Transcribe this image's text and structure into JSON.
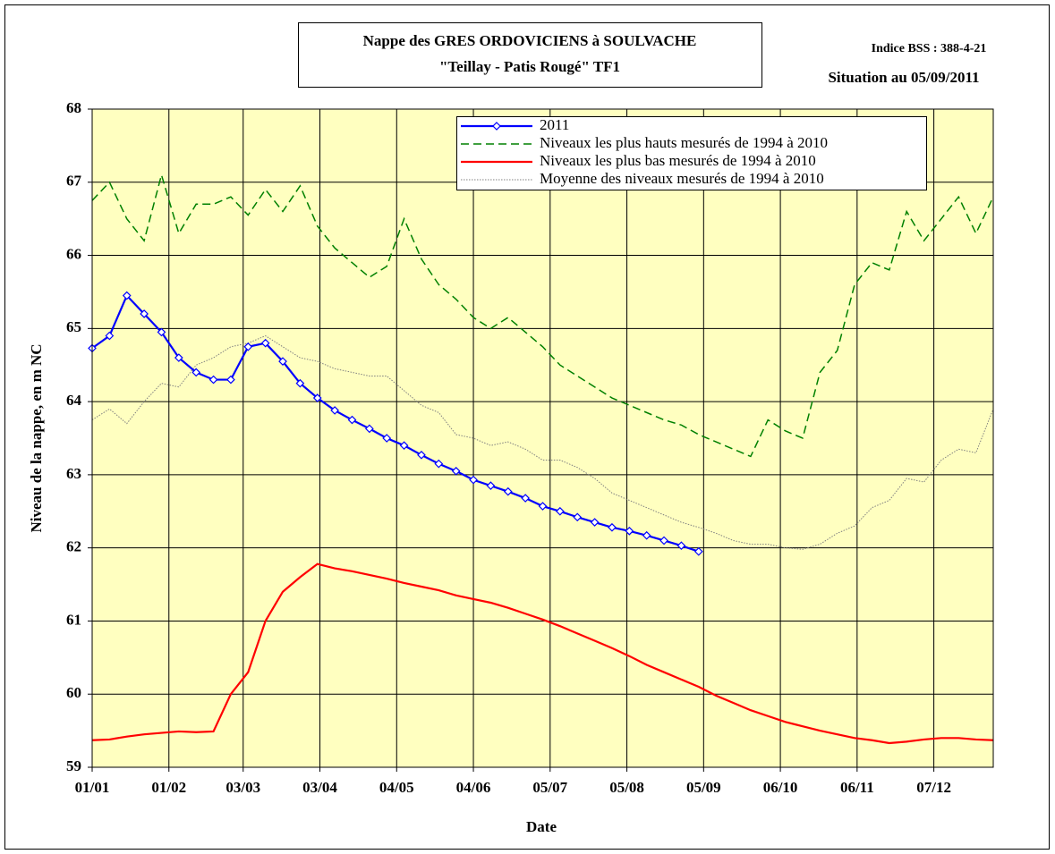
{
  "chart_data": {
    "type": "line",
    "title": "Nappe des GRES ORDOVICIENS à SOULVACHE",
    "subtitle": "\"Teillay - Patis Rougé\" TF1",
    "annotations": [
      "Indice BSS : 388-4-21",
      "Situation au 05/09/2011"
    ],
    "x_label": "Date",
    "y_label": "Niveau de la nappe, en m NC",
    "background": "#ffffc0",
    "grid": true,
    "legend": "top-right",
    "xlim": [
      0,
      364
    ],
    "xticks": [
      {
        "value": 0,
        "label": "01/01"
      },
      {
        "value": 31,
        "label": "01/02"
      },
      {
        "value": 61,
        "label": "03/03"
      },
      {
        "value": 92,
        "label": "03/04"
      },
      {
        "value": 123,
        "label": "04/05"
      },
      {
        "value": 154,
        "label": "04/06"
      },
      {
        "value": 185,
        "label": "05/07"
      },
      {
        "value": 216,
        "label": "05/08"
      },
      {
        "value": 247,
        "label": "05/09"
      },
      {
        "value": 278,
        "label": "06/10"
      },
      {
        "value": 309,
        "label": "06/11"
      },
      {
        "value": 340,
        "label": "07/12"
      }
    ],
    "ylim": [
      59,
      68
    ],
    "yticks": [
      59,
      60,
      61,
      62,
      63,
      64,
      65,
      66,
      67,
      68
    ],
    "x": [
      0,
      7,
      14,
      21,
      28,
      35,
      42,
      49,
      56,
      63,
      70,
      77,
      84,
      91,
      98,
      105,
      112,
      119,
      126,
      133,
      140,
      147,
      154,
      161,
      168,
      175,
      182,
      189,
      196,
      203,
      210,
      217,
      224,
      231,
      238,
      245,
      252,
      259,
      266,
      273,
      280,
      287,
      294,
      301,
      308,
      315,
      322,
      329,
      336,
      343,
      350,
      357,
      364
    ],
    "series": [
      {
        "name": "2011",
        "color": "#0000ff",
        "style": "solid",
        "marker": "diamond",
        "values": [
          64.73,
          64.9,
          65.45,
          65.2,
          64.95,
          64.6,
          64.4,
          64.3,
          64.3,
          64.75,
          64.8,
          64.55,
          64.25,
          64.05,
          63.88,
          63.75,
          63.63,
          63.5,
          63.4,
          63.27,
          63.15,
          63.05,
          62.93,
          62.85,
          62.77,
          62.68,
          62.57,
          62.5,
          62.42,
          62.35,
          62.28,
          62.23,
          62.17,
          62.1,
          62.03,
          61.95,
          null,
          null,
          null,
          null,
          null,
          null,
          null,
          null,
          null,
          null,
          null,
          null,
          null,
          null,
          null,
          null,
          null
        ]
      },
      {
        "name": "Niveaux les plus hauts mesurés de 1994 à 2010",
        "color": "#008000",
        "style": "dashed",
        "values": [
          66.75,
          67.0,
          66.5,
          66.2,
          67.1,
          66.3,
          66.7,
          66.7,
          66.8,
          66.55,
          66.9,
          66.6,
          66.95,
          66.4,
          66.1,
          65.9,
          65.7,
          65.85,
          66.5,
          65.95,
          65.6,
          65.4,
          65.15,
          65.0,
          65.15,
          64.95,
          64.75,
          64.5,
          64.35,
          64.2,
          64.05,
          63.95,
          63.85,
          63.75,
          63.68,
          63.55,
          63.45,
          63.35,
          63.25,
          63.75,
          63.6,
          63.5,
          64.4,
          64.7,
          65.6,
          65.9,
          65.8,
          66.6,
          66.2,
          66.5,
          66.8,
          66.3,
          66.8
        ]
      },
      {
        "name": "Niveaux les plus bas mesurés de 1994 à 2010",
        "color": "#ff0000",
        "style": "solid",
        "values": [
          59.37,
          59.38,
          59.42,
          59.45,
          59.47,
          59.49,
          59.48,
          59.49,
          60.0,
          60.3,
          61.0,
          61.4,
          61.6,
          61.78,
          61.72,
          61.68,
          61.63,
          61.58,
          61.52,
          61.47,
          61.42,
          61.35,
          61.3,
          61.25,
          61.18,
          61.1,
          61.02,
          60.93,
          60.83,
          60.73,
          60.63,
          60.52,
          60.4,
          60.3,
          60.2,
          60.1,
          59.98,
          59.88,
          59.78,
          59.7,
          59.62,
          59.56,
          59.5,
          59.45,
          59.4,
          59.37,
          59.33,
          59.35,
          59.38,
          59.4,
          59.4,
          59.38,
          59.37
        ]
      },
      {
        "name": "Moyenne des niveaux mesurés de 1994 à 2010",
        "color": "#808080",
        "style": "dotted",
        "values": [
          63.75,
          63.9,
          63.7,
          64.0,
          64.25,
          64.2,
          64.5,
          64.6,
          64.75,
          64.8,
          64.9,
          64.75,
          64.6,
          64.55,
          64.45,
          64.4,
          64.35,
          64.35,
          64.15,
          63.95,
          63.85,
          63.55,
          63.5,
          63.4,
          63.45,
          63.35,
          63.2,
          63.2,
          63.1,
          62.95,
          62.75,
          62.65,
          62.55,
          62.45,
          62.35,
          62.28,
          62.2,
          62.1,
          62.05,
          62.05,
          62.0,
          61.98,
          62.05,
          62.2,
          62.3,
          62.55,
          62.65,
          62.95,
          62.9,
          63.2,
          63.35,
          63.3,
          63.9
        ]
      }
    ]
  }
}
